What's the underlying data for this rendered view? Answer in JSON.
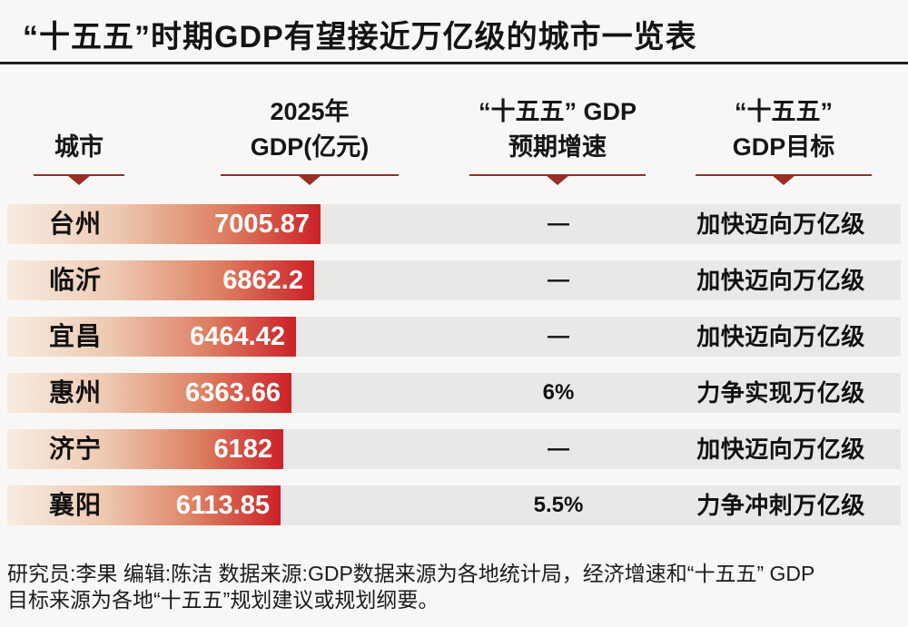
{
  "title": "“十五五”时期GDP有望接近万亿级的城市一览表",
  "header": {
    "cols": [
      {
        "line1": "",
        "line2": "城市"
      },
      {
        "line1": "2025年",
        "line2": "GDP(亿元)"
      },
      {
        "line1": "“十五五” GDP",
        "line2": "预期增速"
      },
      {
        "line1": "“十五五”",
        "line2": "GDP目标"
      }
    ]
  },
  "chart_data": {
    "type": "table",
    "title": "“十五五”时期GDP有望接近万亿级的城市一览表",
    "columns": [
      "城市",
      "2025年GDP(亿元)",
      "“十五五”GDP预期增速",
      "“十五五”GDP目标"
    ],
    "bar_max_value": 7005.87,
    "rows": [
      {
        "city": "台州",
        "gdp_2025": "7005.87",
        "gdp_value": 7005.87,
        "growth": "—",
        "target": "加快迈向万亿级"
      },
      {
        "city": "临沂",
        "gdp_2025": "6862.2",
        "gdp_value": 6862.2,
        "growth": "—",
        "target": "加快迈向万亿级"
      },
      {
        "city": "宜昌",
        "gdp_2025": "6464.42",
        "gdp_value": 6464.42,
        "growth": "—",
        "target": "加快迈向万亿级"
      },
      {
        "city": "惠州",
        "gdp_2025": "6363.66",
        "gdp_value": 6363.66,
        "growth": "6%",
        "target": "力争实现万亿级"
      },
      {
        "city": "济宁",
        "gdp_2025": "6182",
        "gdp_value": 6182,
        "growth": "—",
        "target": "加快迈向万亿级"
      },
      {
        "city": "襄阳",
        "gdp_2025": "6113.85",
        "gdp_value": 6113.85,
        "growth": "5.5%",
        "target": "力争冲刺万亿级"
      }
    ]
  },
  "footer": {
    "line1": "研究员:李果  编辑:陈洁  数据来源:GDP数据来源为各地统计局，经济增速和“十五五” GDP",
    "line2": "目标来源为各地“十五五”规划建议或规划纲要。"
  },
  "colors": {
    "accent_red": "#cb2127",
    "marker_red": "#9a2d26",
    "row_strip": "#e9e8e6",
    "background": "#f8f7f5",
    "title_rule": "#222222"
  }
}
